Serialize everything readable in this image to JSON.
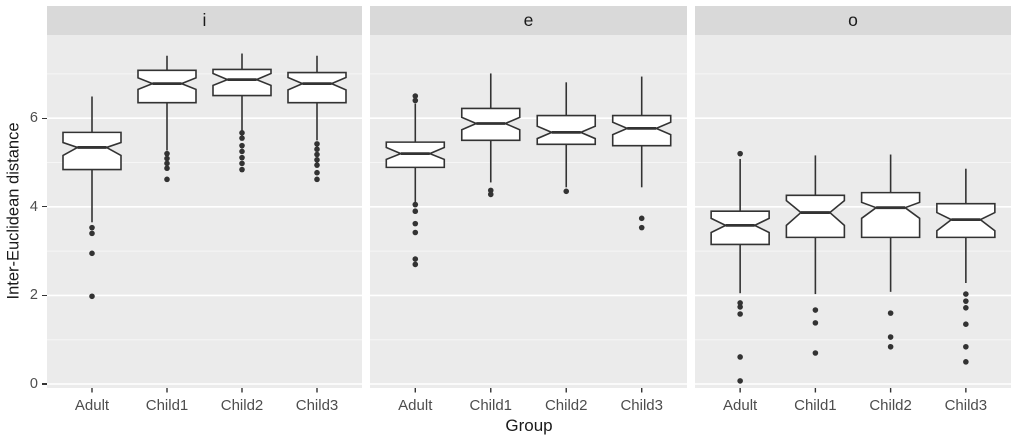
{
  "chart_data": {
    "type": "boxplot",
    "title": "",
    "xlabel": "Group",
    "ylabel": "Inter-Euclidean distance",
    "legend": "none",
    "grid": true,
    "notched": true,
    "categories": [
      "Adult",
      "Child1",
      "Child2",
      "Child3"
    ],
    "y_axis": {
      "ticks": [
        0,
        2,
        4,
        6
      ],
      "minor_ticks": [
        1,
        3,
        5,
        7
      ],
      "range": [
        -0.1,
        7.9
      ]
    },
    "facets": [
      {
        "label": "i",
        "boxes": [
          {
            "group": "Adult",
            "whisker_low": 3.65,
            "q1": 4.84,
            "median": 5.34,
            "q3": 5.68,
            "whisker_high": 6.49,
            "notch_low": 5.16,
            "notch_high": 5.45,
            "outliers": [
              3.53,
              3.4,
              2.95,
              1.98
            ]
          },
          {
            "group": "Child1",
            "whisker_low": 5.27,
            "q1": 6.35,
            "median": 6.78,
            "q3": 7.08,
            "whisker_high": 7.41,
            "notch_low": 6.65,
            "notch_high": 6.91,
            "outliers": [
              5.2,
              5.09,
              4.98,
              4.87,
              4.62
            ]
          },
          {
            "group": "Child2",
            "whisker_low": 5.5,
            "q1": 6.51,
            "median": 6.87,
            "q3": 7.1,
            "whisker_high": 7.46,
            "notch_low": 6.74,
            "notch_high": 7.01,
            "outliers": [
              5.67,
              5.55,
              5.38,
              5.25,
              5.11,
              4.98,
              4.84
            ]
          },
          {
            "group": "Child3",
            "whisker_low": 5.5,
            "q1": 6.35,
            "median": 6.78,
            "q3": 7.03,
            "whisker_high": 7.41,
            "notch_low": 6.64,
            "notch_high": 6.92,
            "outliers": [
              5.42,
              5.3,
              5.18,
              5.06,
              4.94,
              4.77,
              4.62
            ]
          }
        ]
      },
      {
        "label": "e",
        "boxes": [
          {
            "group": "Adult",
            "whisker_low": 4.08,
            "q1": 4.89,
            "median": 5.2,
            "q3": 5.46,
            "whisker_high": 6.33,
            "notch_low": 5.07,
            "notch_high": 5.34,
            "outliers": [
              6.5,
              6.4,
              4.05,
              3.9,
              3.62,
              3.42,
              2.82,
              2.7
            ]
          },
          {
            "group": "Child1",
            "whisker_low": 4.55,
            "q1": 5.5,
            "median": 5.88,
            "q3": 6.22,
            "whisker_high": 7.01,
            "notch_low": 5.74,
            "notch_high": 6.02,
            "outliers": [
              4.37,
              4.28
            ]
          },
          {
            "group": "Child2",
            "whisker_low": 4.44,
            "q1": 5.41,
            "median": 5.68,
            "q3": 6.06,
            "whisker_high": 6.81,
            "notch_low": 5.54,
            "notch_high": 5.82,
            "outliers": [
              4.35
            ]
          },
          {
            "group": "Child3",
            "whisker_low": 4.44,
            "q1": 5.38,
            "median": 5.77,
            "q3": 6.06,
            "whisker_high": 6.94,
            "notch_low": 5.63,
            "notch_high": 5.91,
            "outliers": [
              3.74,
              3.53
            ]
          }
        ]
      },
      {
        "label": "o",
        "boxes": [
          {
            "group": "Adult",
            "whisker_low": 2.05,
            "q1": 3.15,
            "median": 3.58,
            "q3": 3.9,
            "whisker_high": 5.08,
            "notch_low": 3.42,
            "notch_high": 3.74,
            "outliers": [
              5.2,
              1.83,
              1.74,
              1.58,
              0.61,
              0.07
            ]
          },
          {
            "group": "Child1",
            "whisker_low": 2.03,
            "q1": 3.31,
            "median": 3.87,
            "q3": 4.26,
            "whisker_high": 5.16,
            "notch_low": 3.58,
            "notch_high": 4.14,
            "outliers": [
              1.67,
              1.38,
              0.7
            ]
          },
          {
            "group": "Child2",
            "whisker_low": 2.08,
            "q1": 3.31,
            "median": 3.98,
            "q3": 4.32,
            "whisker_high": 5.18,
            "notch_low": 3.74,
            "notch_high": 4.1,
            "outliers": [
              1.6,
              1.06,
              0.84
            ]
          },
          {
            "group": "Child3",
            "whisker_low": 2.28,
            "q1": 3.31,
            "median": 3.71,
            "q3": 4.07,
            "whisker_high": 4.86,
            "notch_low": 3.46,
            "notch_high": 3.87,
            "outliers": [
              2.03,
              1.87,
              1.72,
              1.35,
              0.84,
              0.5
            ]
          }
        ]
      }
    ],
    "style": {
      "panel_bg": "#ebebeb",
      "strip_bg": "#d9d9d9",
      "grid_major": "#ffffff",
      "grid_minor": "rgba(255,255,255,0.55)",
      "box_stroke": "#333333",
      "box_fill": "#ffffff",
      "point_color": "#333333",
      "tick_color": "#333333",
      "axis_text_color": "#4d4d4d",
      "title_color": "#1a1a1a"
    }
  }
}
